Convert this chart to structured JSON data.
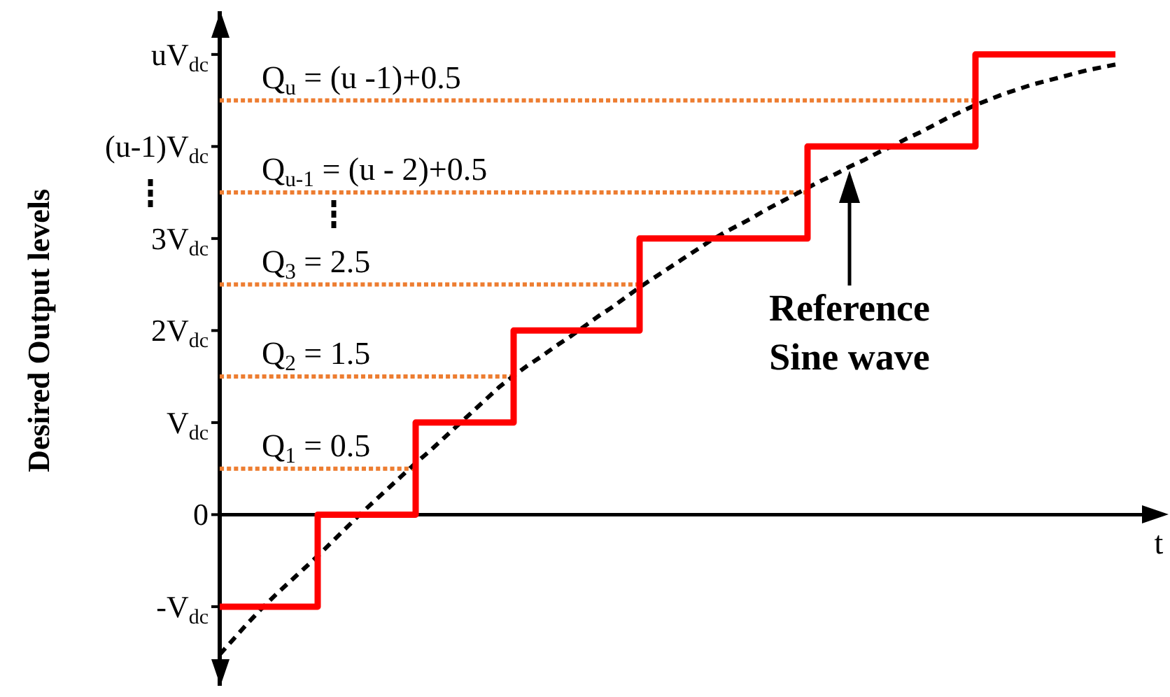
{
  "chart_data": {
    "type": "step",
    "xlabel": "t",
    "ylabel": "Desired Output levels",
    "categories": [
      null,
      null,
      null,
      null,
      null,
      null,
      null,
      null,
      null,
      null,
      null,
      null,
      null,
      null,
      null,
      null,
      null,
      null,
      null,
      null,
      null,
      null,
      null,
      null,
      null,
      null,
      null,
      null,
      null,
      null,
      null,
      null,
      null,
      null,
      null,
      null,
      null,
      null,
      null,
      null,
      null,
      null,
      null,
      null,
      null,
      null,
      null,
      null,
      null,
      null,
      null,
      null,
      null,
      null,
      null,
      null,
      null,
      null,
      null,
      null,
      null,
      null,
      null,
      null,
      null
    ],
    "series": [
      {
        "color": "#ff0000",
        "values": [
          -1,
          -1,
          -1,
          -1,
          -1,
          -1,
          -1,
          0,
          0,
          0,
          0,
          0,
          0,
          0,
          1,
          1,
          1,
          1,
          1,
          1,
          1,
          2,
          2,
          2,
          2,
          2,
          2,
          2,
          2,
          2,
          3,
          3,
          3,
          3,
          3,
          3,
          3,
          3,
          3,
          3,
          3,
          3,
          4,
          4,
          4,
          4,
          4,
          4,
          4,
          4,
          4,
          4,
          4,
          4,
          5,
          5,
          5,
          5,
          5,
          5,
          5,
          5,
          5,
          5,
          5
        ]
      },
      {
        "type": "line",
        "color": "#000000",
        "line_style": "dashed",
        "values": [
          -1.52,
          -1.35,
          -1.18,
          -1.02,
          -0.87,
          -0.73,
          -0.59,
          -0.45,
          -0.3,
          -0.15,
          0,
          0.14,
          0.28,
          0.42,
          0.56,
          0.69,
          0.83,
          0.97,
          1.11,
          1.25,
          1.39,
          1.51,
          1.62,
          1.72,
          1.83,
          1.93,
          2.04,
          2.15,
          2.25,
          2.36,
          2.47,
          2.57,
          2.67,
          2.77,
          2.87,
          2.97,
          3.06,
          3.14,
          3.22,
          3.31,
          3.39,
          3.47,
          3.55,
          3.63,
          3.7,
          3.78,
          3.85,
          3.93,
          4.0,
          4.08,
          4.15,
          4.23,
          4.31,
          4.38,
          4.45,
          4.51,
          4.57,
          4.62,
          4.67,
          4.71,
          4.75,
          4.79,
          4.83,
          4.86,
          4.89
        ]
      },
      {
        "name": "Q$_{1}$ = 0.5",
        "type": "line",
        "color": "#ed7d31",
        "line_style": "dotted",
        "values": [
          0.5,
          0.5,
          0.5,
          0.5,
          0.5,
          0.5,
          0.5,
          0.5,
          0.5,
          0.5,
          0.5,
          0.5,
          0.5,
          0.5,
          0.5,
          null,
          null,
          null,
          null,
          null,
          null,
          null,
          null,
          null,
          null,
          null,
          null,
          null,
          null,
          null,
          null,
          null,
          null,
          null,
          null,
          null,
          null,
          null,
          null,
          null,
          null,
          null,
          null,
          null,
          null,
          null,
          null,
          null,
          null,
          null,
          null,
          null,
          null,
          null,
          null,
          null,
          null,
          null,
          null,
          null,
          null,
          null,
          null,
          null,
          null
        ]
      },
      {
        "name": "Q$_{2}$ = 1.5",
        "type": "line",
        "color": "#ed7d31",
        "line_style": "dotted",
        "values": [
          1.5,
          1.5,
          1.5,
          1.5,
          1.5,
          1.5,
          1.5,
          1.5,
          1.5,
          1.5,
          1.5,
          1.5,
          1.5,
          1.5,
          1.5,
          1.5,
          1.5,
          1.5,
          1.5,
          1.5,
          1.5,
          1.5,
          null,
          null,
          null,
          null,
          null,
          null,
          null,
          null,
          null,
          null,
          null,
          null,
          null,
          null,
          null,
          null,
          null,
          null,
          null,
          null,
          null,
          null,
          null,
          null,
          null,
          null,
          null,
          null,
          null,
          null,
          null,
          null,
          null,
          null,
          null,
          null,
          null,
          null,
          null,
          null,
          null,
          null,
          null
        ]
      },
      {
        "name": "Q$_{3}$ = 2.5",
        "type": "line",
        "color": "#ed7d31",
        "line_style": "dotted",
        "values": [
          2.5,
          2.5,
          2.5,
          2.5,
          2.5,
          2.5,
          2.5,
          2.5,
          2.5,
          2.5,
          2.5,
          2.5,
          2.5,
          2.5,
          2.5,
          2.5,
          2.5,
          2.5,
          2.5,
          2.5,
          2.5,
          2.5,
          2.5,
          2.5,
          2.5,
          2.5,
          2.5,
          2.5,
          2.5,
          2.5,
          2.5,
          null,
          null,
          null,
          null,
          null,
          null,
          null,
          null,
          null,
          null,
          null,
          null,
          null,
          null,
          null,
          null,
          null,
          null,
          null,
          null,
          null,
          null,
          null,
          null,
          null,
          null,
          null,
          null,
          null,
          null,
          null,
          null,
          null,
          null
        ]
      },
      {
        "name": "Q$_{u-1}$ = (u - 2)+0.5",
        "type": "line",
        "color": "#ed7d31",
        "line_style": "dotted",
        "values": [
          3.5,
          3.5,
          3.5,
          3.5,
          3.5,
          3.5,
          3.5,
          3.5,
          3.5,
          3.5,
          3.5,
          3.5,
          3.5,
          3.5,
          3.5,
          3.5,
          3.5,
          3.5,
          3.5,
          3.5,
          3.5,
          3.5,
          3.5,
          3.5,
          3.5,
          3.5,
          3.5,
          3.5,
          3.5,
          3.5,
          3.5,
          3.5,
          3.5,
          3.5,
          3.5,
          3.5,
          3.5,
          3.5,
          3.5,
          3.5,
          3.5,
          3.5,
          3.5,
          null,
          null,
          null,
          null,
          null,
          null,
          null,
          null,
          null,
          null,
          null,
          null,
          null,
          null,
          null,
          null,
          null,
          null,
          null,
          null,
          null,
          null
        ]
      },
      {
        "name": "Q$_{u}$ = (u -1)+0.5",
        "type": "line",
        "color": "#ed7d31",
        "line_style": "dotted",
        "values": [
          4.5,
          4.5,
          4.5,
          4.5,
          4.5,
          4.5,
          4.5,
          4.5,
          4.5,
          4.5,
          4.5,
          4.5,
          4.5,
          4.5,
          4.5,
          4.5,
          4.5,
          4.5,
          4.5,
          4.5,
          4.5,
          4.5,
          4.5,
          4.5,
          4.5,
          4.5,
          4.5,
          4.5,
          4.5,
          4.5,
          4.5,
          4.5,
          4.5,
          4.5,
          4.5,
          4.5,
          4.5,
          4.5,
          4.5,
          4.5,
          4.5,
          4.5,
          4.5,
          4.5,
          4.5,
          4.5,
          4.5,
          4.5,
          4.5,
          4.5,
          4.5,
          4.5,
          4.5,
          4.5,
          4.5,
          null,
          null,
          null,
          null,
          null,
          null,
          null,
          null,
          null,
          null
        ]
      }
    ],
    "ylim": [
      -1.86,
      5.47
    ],
    "yticks": [
      {
        "value": -1,
        "label": "-V$_{dc}$"
      },
      0,
      {
        "value": 1,
        "label": "V$_{dc}$"
      },
      {
        "value": 2,
        "label": "2V$_{dc}$"
      },
      {
        "value": 3,
        "label": "3V$_{dc}$"
      },
      {
        "value": 4,
        "label": "(u-1)V$_{dc}$"
      },
      {
        "value": 5,
        "label": "uV$_{dc}$"
      }
    ],
    "annotations": [
      "Reference Sine wave"
    ]
  }
}
